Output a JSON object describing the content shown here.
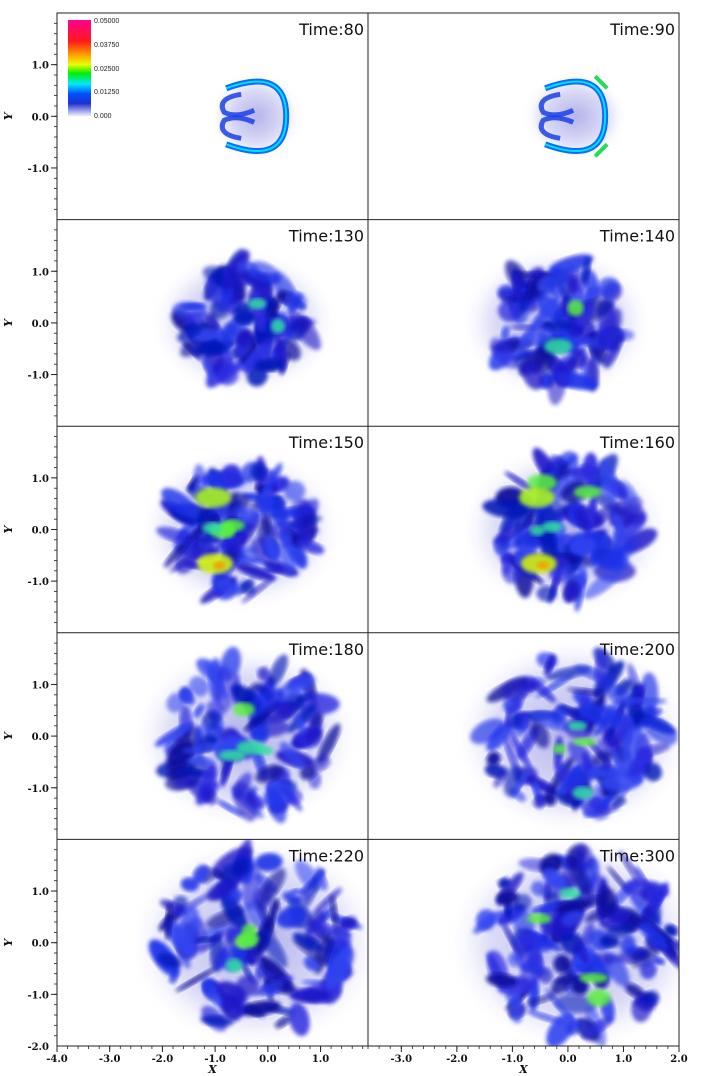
{
  "chart_data": {
    "type": "heatmap",
    "layout": {
      "rows": 5,
      "cols": 2
    },
    "panels": [
      {
        "time_label": "Time:80"
      },
      {
        "time_label": "Time:90"
      },
      {
        "time_label": "Time:130"
      },
      {
        "time_label": "Time:140"
      },
      {
        "time_label": "Time:150"
      },
      {
        "time_label": "Time:160"
      },
      {
        "time_label": "Time:180"
      },
      {
        "time_label": "Time:200"
      },
      {
        "time_label": "Time:220"
      },
      {
        "time_label": "Time:300"
      }
    ],
    "xlabel": "X",
    "ylabel": "Y",
    "x_ticks_left": [
      "-4.0",
      "-3.0",
      "-2.0",
      "-1.0",
      "0.0",
      "1.0"
    ],
    "x_ticks_right": [
      "-3.0",
      "-2.0",
      "-1.0",
      "0.0",
      "1.0",
      "2.0"
    ],
    "y_ticks": [
      "1.0",
      "0.0",
      "-1.0"
    ],
    "y_tick_bottom": "-2.0",
    "colorbar": {
      "labels": [
        "0.05000",
        "0.03750",
        "0.02500",
        "0.01250",
        "0.000"
      ],
      "colors": [
        "#ff0080",
        "#ff1010",
        "#ff8000",
        "#ffff00",
        "#00ff00",
        "#00ffff",
        "#0050ff",
        "#1020d0",
        "#ffffff"
      ]
    }
  }
}
